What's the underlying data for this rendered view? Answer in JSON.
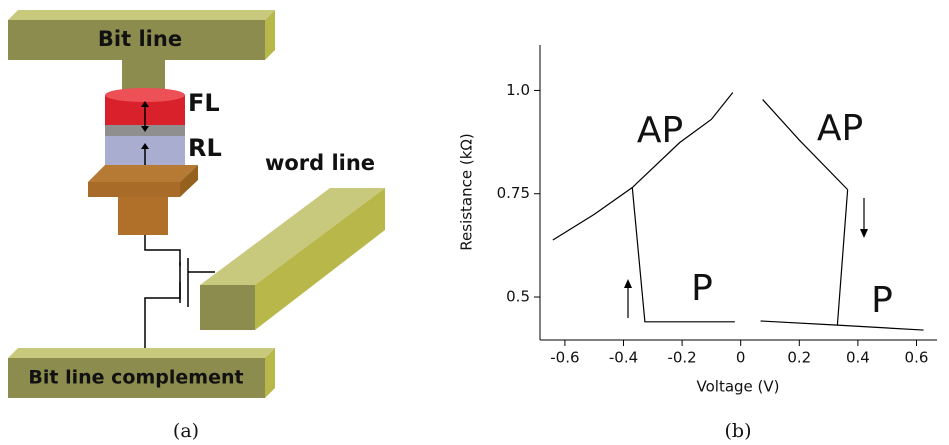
{
  "diagram": {
    "bit_line": "Bit line",
    "fl": "FL",
    "rl": "RL",
    "word_line": "word line",
    "bit_line_complement": "Bit line complement",
    "caption": "(a)"
  },
  "chart_data": {
    "type": "line",
    "caption": "(b)",
    "x_label": "Voltage (V)",
    "y_label": "Resistance (kΩ)",
    "xlim": [
      -0.685,
      0.67
    ],
    "ylim": [
      0.396,
      1.11
    ],
    "xticks": [
      -0.6,
      -0.4,
      -0.2,
      0,
      0.2,
      0.4,
      0.6
    ],
    "yticks": [
      {
        "value": 1,
        "label": "1.0"
      },
      0.75,
      0.5
    ],
    "color": "#000000",
    "annotations": [
      "AP",
      "AP",
      "P",
      "P"
    ],
    "series": [
      {
        "x": [
          -0.641,
          -0.5,
          -0.37,
          -0.208,
          -0.1,
          -0.027
        ],
        "values": [
          0.638,
          0.7,
          0.765,
          0.874,
          0.93,
          0.995
        ]
      },
      {
        "x": [
          -0.37,
          -0.327,
          -0.02
        ],
        "values": [
          0.765,
          0.44,
          0.44
        ]
      },
      {
        "x": [
          0.075,
          0.2,
          0.365
        ],
        "values": [
          0.978,
          0.88,
          0.76
        ]
      },
      {
        "x": [
          0.365,
          0.33
        ],
        "values": [
          0.76,
          0.432
        ]
      },
      {
        "x": [
          0.068,
          0.33,
          0.624
        ],
        "values": [
          0.442,
          0.432,
          0.42
        ]
      }
    ]
  }
}
